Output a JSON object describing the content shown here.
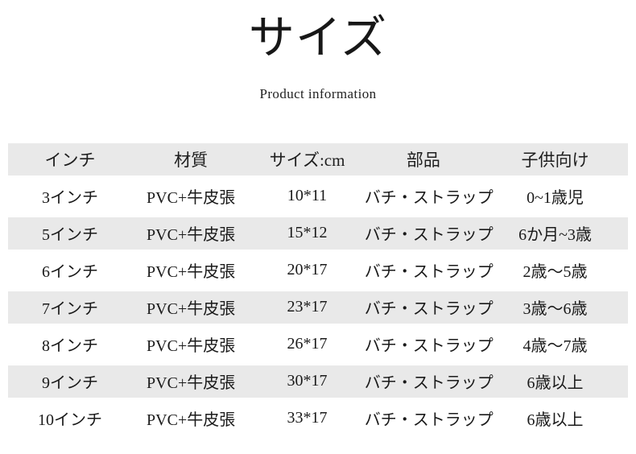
{
  "page": {
    "title": "サイズ",
    "subtitle": "Product information",
    "background_color": "#ffffff",
    "text_color": "#1a1a1a"
  },
  "table": {
    "stripe_color": "#e9e9e9",
    "columns": [
      "インチ",
      "材質",
      "サイズ:cm",
      "部品",
      "子供向け"
    ],
    "column_keys": [
      "inch",
      "material",
      "size-cm",
      "parts",
      "age-range"
    ],
    "rows": [
      [
        "3インチ",
        "PVC+牛皮張",
        "10*11",
        "バチ・ストラップ",
        "0~1歳児"
      ],
      [
        "5インチ",
        "PVC+牛皮張",
        "15*12",
        "バチ・ストラップ",
        "6か月~3歳"
      ],
      [
        "6インチ",
        "PVC+牛皮張",
        "20*17",
        "バチ・ストラップ",
        "2歳～5歳"
      ],
      [
        "7インチ",
        "PVC+牛皮張",
        "23*17",
        "バチ・ストラップ",
        "3歳～6歳"
      ],
      [
        "8インチ",
        "PVC+牛皮張",
        "26*17",
        "バチ・ストラップ",
        "4歳～7歳"
      ],
      [
        "9インチ",
        "PVC+牛皮張",
        "30*17",
        "バチ・ストラップ",
        "6歳以上"
      ],
      [
        "10インチ",
        "PVC+牛皮張",
        "33*17",
        "バチ・ストラップ",
        "6歳以上"
      ]
    ]
  }
}
